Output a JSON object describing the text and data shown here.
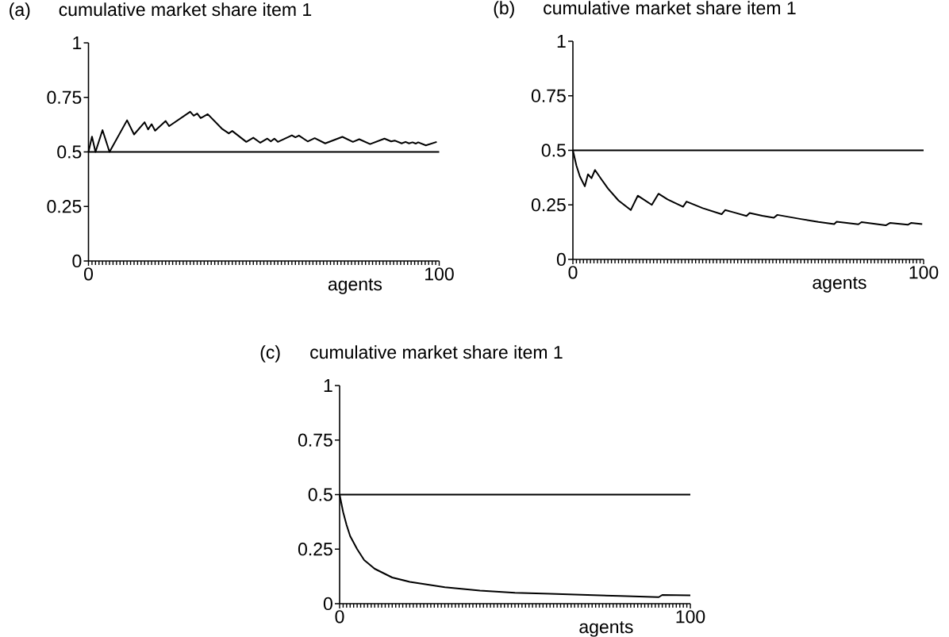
{
  "chart_data": [
    {
      "type": "line",
      "title": "cumulative market share item 1",
      "annotations": [
        "(a)"
      ],
      "xlabel": "agents",
      "xlim": [
        0,
        100
      ],
      "xticks": [
        0,
        100
      ],
      "ylim": [
        0,
        1
      ],
      "yticks": [
        0,
        0.25,
        0.5,
        0.75,
        1
      ],
      "ref_lines": [
        {
          "axis": "y",
          "value": 0.5
        }
      ],
      "series": [
        {
          "color": "#000000",
          "x": [
            0,
            1,
            2,
            4,
            6,
            11,
            13,
            16,
            17,
            18,
            19,
            22,
            23,
            29,
            30,
            31,
            32,
            34,
            38,
            40,
            41,
            45,
            47,
            49,
            51,
            52,
            53,
            54,
            58,
            59,
            60,
            62.5,
            64.5,
            67.5,
            72.4,
            75.4,
            77.2,
            80.3,
            84.4,
            86.3,
            87.3,
            89.3,
            90.4,
            91.4,
            92.4,
            93.3,
            94,
            96.2,
            99.3
          ],
          "values": [
            0.5,
            0.57,
            0.5,
            0.6,
            0.5,
            0.645,
            0.58,
            0.636,
            0.603,
            0.627,
            0.597,
            0.642,
            0.618,
            0.684,
            0.666,
            0.676,
            0.655,
            0.673,
            0.607,
            0.585,
            0.596,
            0.546,
            0.565,
            0.542,
            0.561,
            0.548,
            0.561,
            0.546,
            0.576,
            0.567,
            0.575,
            0.548,
            0.563,
            0.539,
            0.569,
            0.546,
            0.558,
            0.536,
            0.561,
            0.548,
            0.552,
            0.539,
            0.546,
            0.539,
            0.544,
            0.538,
            0.544,
            0.53,
            0.546
          ]
        }
      ]
    },
    {
      "type": "line",
      "title": "cumulative market share item 1",
      "annotations": [
        "(b)"
      ],
      "xlabel": "agents",
      "xlim": [
        0,
        100
      ],
      "xticks": [
        0,
        100
      ],
      "ylim": [
        0,
        1
      ],
      "yticks": [
        0,
        0.25,
        0.5,
        0.75,
        1
      ],
      "ref_lines": [
        {
          "axis": "y",
          "value": 0.5
        }
      ],
      "series": [
        {
          "color": "#000000",
          "x": [
            0,
            1,
            2,
            3.4,
            4.3,
            5.3,
            6.3,
            8,
            10,
            13,
            16.5,
            18.5,
            22.5,
            24.4,
            27,
            31.4,
            32.4,
            37,
            42.4,
            43.4,
            46,
            49.5,
            50.4,
            54,
            57.3,
            58.3,
            65,
            70,
            74.5,
            75.2,
            81.4,
            82.3,
            89.2,
            90.4,
            95.5,
            96.4,
            99.6
          ],
          "values": [
            0.5,
            0.43,
            0.38,
            0.335,
            0.39,
            0.372,
            0.41,
            0.37,
            0.325,
            0.27,
            0.226,
            0.292,
            0.25,
            0.301,
            0.275,
            0.241,
            0.265,
            0.235,
            0.207,
            0.226,
            0.215,
            0.199,
            0.213,
            0.2,
            0.191,
            0.204,
            0.185,
            0.172,
            0.162,
            0.173,
            0.161,
            0.171,
            0.156,
            0.167,
            0.159,
            0.167,
            0.162
          ]
        }
      ]
    },
    {
      "type": "line",
      "title": "cumulative market share item 1",
      "annotations": [
        "(c)"
      ],
      "xlabel": "agents",
      "xlim": [
        0,
        100
      ],
      "xticks": [
        0,
        100
      ],
      "ylim": [
        0,
        1
      ],
      "yticks": [
        0,
        0.25,
        0.5,
        0.75,
        1
      ],
      "ref_lines": [
        {
          "axis": "y",
          "value": 0.5
        }
      ],
      "series": [
        {
          "color": "#000000",
          "x": [
            0,
            1,
            2,
            3,
            5,
            7,
            10,
            15,
            20,
            30,
            40,
            50,
            60,
            70,
            80,
            91,
            92,
            100
          ],
          "values": [
            0.5,
            0.42,
            0.36,
            0.31,
            0.25,
            0.2,
            0.16,
            0.12,
            0.1,
            0.075,
            0.06,
            0.05,
            0.045,
            0.04,
            0.035,
            0.03,
            0.04,
            0.038
          ]
        }
      ]
    }
  ]
}
